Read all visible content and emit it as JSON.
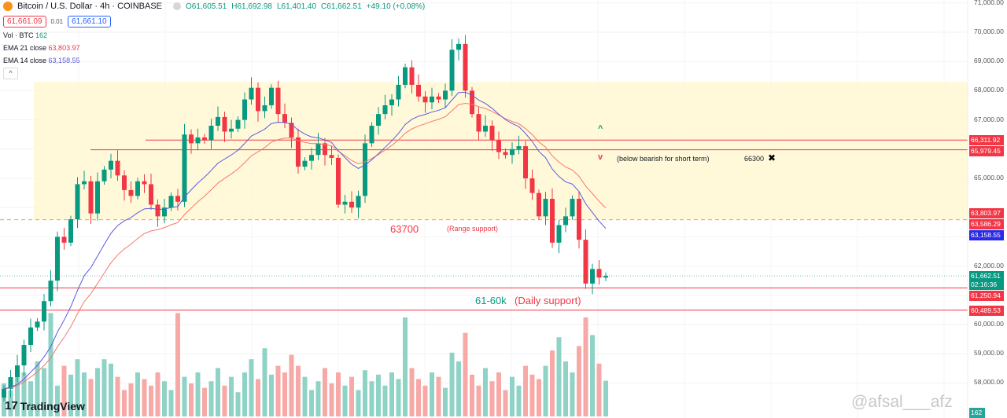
{
  "header": {
    "symbol": "Bitcoin / U.S. Dollar · 4h · COINBASE",
    "open": "O61,605.51",
    "high": "H61,692.98",
    "low": "L61,401.40",
    "close": "C61,662.51",
    "change": "+49.10 (+0.08%)",
    "sell_price": "61,661.09",
    "spread": "0.01",
    "buy_price": "61,661.10"
  },
  "indicators": {
    "vol_label": "Vol · BTC",
    "vol_value": "162",
    "ema21_label": "EMA 21 close",
    "ema21_value": "63,803.97",
    "ema14_label": "EMA 14 close",
    "ema14_value": "63,158.55",
    "collapse": "^"
  },
  "axis": {
    "ticks": [
      "71,000.00",
      "70,000.00",
      "69,000.00",
      "68,000.00",
      "67,000.00",
      "65,000.00",
      "62,000.00",
      "60,000.00",
      "59,000.00",
      "58,000.00"
    ],
    "tags": [
      {
        "text": "66,311.92",
        "price": 66311.92,
        "color": "#f23645"
      },
      {
        "text": "65,979.45",
        "price": 65979.45,
        "color": "#f23645"
      },
      {
        "text": "63,803.97",
        "price": 63803.97,
        "color": "#f23645"
      },
      {
        "text": "63,586.29",
        "price": 63586.29,
        "color": "#f23645"
      },
      {
        "text": "63,158.55",
        "price": 63158.55,
        "color": "#2929e6"
      },
      {
        "text": "61,662.51",
        "price": 61662.51,
        "color": "#089981",
        "sub": "02:16:36"
      },
      {
        "text": "61,250.94",
        "price": 61250.94,
        "color": "#f23645"
      },
      {
        "text": "60,489.53",
        "price": 60489.53,
        "color": "#f23645"
      }
    ],
    "volume_tag": "162"
  },
  "annotations": {
    "range_support_value": "63700",
    "range_support_label": "(Range support)",
    "daily_support_value": "61-60k",
    "daily_support_label": "(Daily support)",
    "bearish_note": "(below bearish for short term)",
    "bearish_level": "66300",
    "up_arrow": "^",
    "down_arrow": "v",
    "cross": "✖"
  },
  "branding": {
    "logo": "TradingView",
    "watermark": "@afsal___afz"
  },
  "colors": {
    "up": "#089981",
    "down": "#f23645",
    "ema21": "#f7786b",
    "ema14": "#5b5bdc",
    "zone": "#fff8d6"
  },
  "chart_data": {
    "type": "candlestick",
    "interval": "4h",
    "ylim": [
      57500,
      71000
    ],
    "zone": [
      63586.29,
      68300
    ],
    "levels": [
      66311.92,
      65979.45,
      63586.29,
      61250.94,
      60489.53
    ],
    "closes": [
      57800,
      58200,
      58600,
      59300,
      59900,
      60100,
      60800,
      61500,
      63000,
      62800,
      63600,
      64800,
      64900,
      63800,
      64900,
      65300,
      65600,
      65100,
      64600,
      64400,
      64900,
      64800,
      64100,
      63700,
      64000,
      64400,
      64200,
      66500,
      66200,
      66400,
      66300,
      66800,
      67100,
      66600,
      66700,
      67000,
      67700,
      68100,
      67300,
      67500,
      68100,
      67200,
      66900,
      66400,
      65400,
      65600,
      65800,
      66200,
      65800,
      65700,
      64100,
      64200,
      64000,
      64400,
      66200,
      66800,
      67200,
      67500,
      67700,
      68200,
      68800,
      68200,
      67800,
      67600,
      67800,
      67700,
      68000,
      69400,
      69600,
      68000,
      67200,
      66600,
      66800,
      66300,
      65900,
      65800,
      66000,
      66100,
      65000,
      64500,
      63700,
      64300,
      62800,
      63400,
      63700,
      64300,
      62900,
      61400,
      61900,
      61605,
      61662
    ],
    "volumes": [
      150,
      120,
      180,
      200,
      160,
      250,
      220,
      470,
      140,
      230,
      190,
      260,
      200,
      170,
      220,
      260,
      240,
      180,
      120,
      150,
      200,
      170,
      140,
      200,
      160,
      120,
      470,
      180,
      150,
      200,
      130,
      160,
      220,
      140,
      180,
      110,
      200,
      260,
      170,
      310,
      190,
      230,
      200,
      280,
      230,
      180,
      120,
      160,
      220,
      150,
      200,
      140,
      180,
      120,
      210,
      160,
      190,
      140,
      200,
      170,
      450,
      220,
      170,
      140,
      200,
      180,
      130,
      290,
      250,
      380,
      190,
      140,
      220,
      160,
      200,
      120,
      180,
      140,
      230,
      190,
      170,
      230,
      300,
      360,
      250,
      200,
      320,
      450,
      370,
      240,
      162
    ]
  }
}
